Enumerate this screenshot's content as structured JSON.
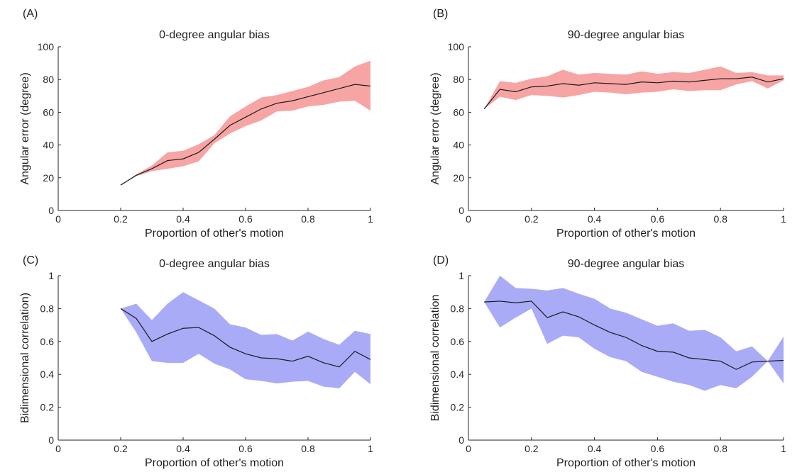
{
  "chart_data": [
    {
      "panel": "(A)",
      "type": "line",
      "title": "0-degree angular bias",
      "xlabel": "Proportion of other's motion",
      "ylabel": "Angular error (degree)",
      "xlim": [
        0,
        1
      ],
      "ylim": [
        0,
        100
      ],
      "xticks": [
        0,
        0.2,
        0.4,
        0.6,
        0.8,
        1
      ],
      "xtick_labels": [
        "0",
        "0.2",
        "0.4",
        "0.6",
        "0.8",
        "1"
      ],
      "yticks": [
        0,
        20,
        40,
        60,
        80,
        100
      ],
      "ytick_labels": [
        "0",
        "20",
        "40",
        "60",
        "80",
        "100"
      ],
      "band_color": "#f7a4a4",
      "line_color": "#1a1a1a",
      "grid": false,
      "x": [
        0.2,
        0.25,
        0.3,
        0.35,
        0.4,
        0.45,
        0.5,
        0.55,
        0.6,
        0.65,
        0.7,
        0.75,
        0.8,
        0.85,
        0.9,
        0.95,
        1.0
      ],
      "mean": [
        15.5,
        21.5,
        25.5,
        30.5,
        31.5,
        35.5,
        43.5,
        52,
        57,
        62,
        65.5,
        67,
        69.5,
        72,
        74.5,
        77,
        76
      ],
      "upper": [
        15.5,
        22,
        27.5,
        35.5,
        36.5,
        40.5,
        46,
        57.5,
        63.5,
        69,
        70.5,
        73,
        75.5,
        79.5,
        81.5,
        88,
        91.5
      ],
      "lower": [
        15.5,
        21,
        24,
        25.5,
        27,
        30,
        41,
        47,
        51.5,
        55,
        60.5,
        61,
        63.5,
        64.5,
        66.5,
        67,
        61
      ]
    },
    {
      "panel": "(B)",
      "type": "line",
      "title": "90-degree angular bias",
      "xlabel": "Proportion of other's motion",
      "ylabel": "Angular error (degree)",
      "xlim": [
        0,
        1
      ],
      "ylim": [
        0,
        100
      ],
      "xticks": [
        0,
        0.2,
        0.4,
        0.6,
        0.8,
        1
      ],
      "xtick_labels": [
        "0",
        "0.2",
        "0.4",
        "0.6",
        "0.8",
        "1"
      ],
      "yticks": [
        0,
        20,
        40,
        60,
        80,
        100
      ],
      "ytick_labels": [
        "0",
        "20",
        "40",
        "60",
        "80",
        "100"
      ],
      "band_color": "#f7a4a4",
      "line_color": "#1a1a1a",
      "grid": false,
      "x": [
        0.05,
        0.1,
        0.15,
        0.2,
        0.25,
        0.3,
        0.35,
        0.4,
        0.45,
        0.5,
        0.55,
        0.6,
        0.65,
        0.7,
        0.75,
        0.8,
        0.85,
        0.9,
        0.95,
        1.0
      ],
      "mean": [
        62,
        74,
        72.5,
        75.5,
        76,
        77.5,
        76.5,
        78,
        77.5,
        77,
        78.5,
        78,
        79,
        78.5,
        79.5,
        80.5,
        80.5,
        81.5,
        78.5,
        80.5
      ],
      "upper": [
        62,
        79,
        78,
        80.5,
        82,
        86,
        83,
        84,
        83.5,
        83,
        85,
        83.5,
        84.5,
        84,
        86,
        88,
        84,
        84.5,
        82.5,
        82.5
      ],
      "lower": [
        62,
        69.5,
        67.5,
        70.5,
        70,
        69,
        70.5,
        72.5,
        72,
        71,
        72,
        72.5,
        74,
        73,
        73.5,
        73.5,
        77,
        79,
        74.5,
        79.5
      ]
    },
    {
      "panel": "(C)",
      "type": "line",
      "title": "0-degree angular bias",
      "xlabel": "Proportion of other's motion",
      "ylabel": "Bidimensional correlation)",
      "xlim": [
        0,
        1
      ],
      "ylim": [
        0,
        1
      ],
      "xticks": [
        0,
        0.2,
        0.4,
        0.6,
        0.8,
        1
      ],
      "xtick_labels": [
        "0",
        "0.2",
        "0.4",
        "0.6",
        "0.8",
        "1"
      ],
      "yticks": [
        0,
        0.2,
        0.4,
        0.6,
        0.8,
        1
      ],
      "ytick_labels": [
        "0",
        "0.2",
        "0.4",
        "0.6",
        "0.8",
        "1"
      ],
      "band_color": "#a9abf7",
      "line_color": "#1a1a1a",
      "grid": false,
      "x": [
        0.2,
        0.25,
        0.3,
        0.35,
        0.4,
        0.45,
        0.5,
        0.55,
        0.6,
        0.65,
        0.7,
        0.75,
        0.8,
        0.85,
        0.9,
        0.95,
        1.0
      ],
      "mean": [
        0.8,
        0.74,
        0.6,
        0.645,
        0.68,
        0.685,
        0.635,
        0.565,
        0.525,
        0.5,
        0.495,
        0.48,
        0.51,
        0.47,
        0.445,
        0.54,
        0.49
      ],
      "upper": [
        0.8,
        0.83,
        0.73,
        0.83,
        0.9,
        0.85,
        0.8,
        0.705,
        0.685,
        0.64,
        0.645,
        0.605,
        0.66,
        0.615,
        0.58,
        0.665,
        0.645
      ],
      "lower": [
        0.8,
        0.655,
        0.48,
        0.47,
        0.47,
        0.525,
        0.465,
        0.43,
        0.37,
        0.36,
        0.345,
        0.355,
        0.36,
        0.325,
        0.315,
        0.415,
        0.34
      ]
    },
    {
      "panel": "(D)",
      "type": "line",
      "title": "90-degree angular bias",
      "xlabel": "Proportion of other's motion",
      "ylabel": "Bidimensional correlation",
      "xlim": [
        0,
        1
      ],
      "ylim": [
        0,
        1
      ],
      "xticks": [
        0,
        0.2,
        0.4,
        0.6,
        0.8,
        1
      ],
      "xtick_labels": [
        "0",
        "0.2",
        "0.4",
        "0.6",
        "0.8",
        "1"
      ],
      "yticks": [
        0,
        0.2,
        0.4,
        0.6,
        0.8,
        1
      ],
      "ytick_labels": [
        "0",
        "0.2",
        "0.4",
        "0.6",
        "0.8",
        "1"
      ],
      "band_color": "#a9abf7",
      "line_color": "#1a1a1a",
      "grid": false,
      "x": [
        0.05,
        0.1,
        0.15,
        0.2,
        0.25,
        0.3,
        0.35,
        0.4,
        0.45,
        0.5,
        0.55,
        0.6,
        0.65,
        0.7,
        0.75,
        0.8,
        0.85,
        0.9,
        0.95,
        1.0
      ],
      "mean": [
        0.84,
        0.845,
        0.835,
        0.845,
        0.745,
        0.78,
        0.75,
        0.7,
        0.655,
        0.625,
        0.575,
        0.54,
        0.535,
        0.5,
        0.49,
        0.48,
        0.43,
        0.475,
        0.48,
        0.485
      ],
      "upper": [
        0.84,
        1.0,
        0.925,
        0.92,
        0.91,
        0.925,
        0.89,
        0.86,
        0.8,
        0.775,
        0.735,
        0.695,
        0.71,
        0.665,
        0.67,
        0.625,
        0.54,
        0.57,
        0.48,
        0.63
      ],
      "lower": [
        0.84,
        0.685,
        0.745,
        0.8,
        0.585,
        0.635,
        0.625,
        0.555,
        0.505,
        0.48,
        0.415,
        0.385,
        0.355,
        0.335,
        0.3,
        0.335,
        0.315,
        0.385,
        0.48,
        0.345
      ]
    }
  ]
}
